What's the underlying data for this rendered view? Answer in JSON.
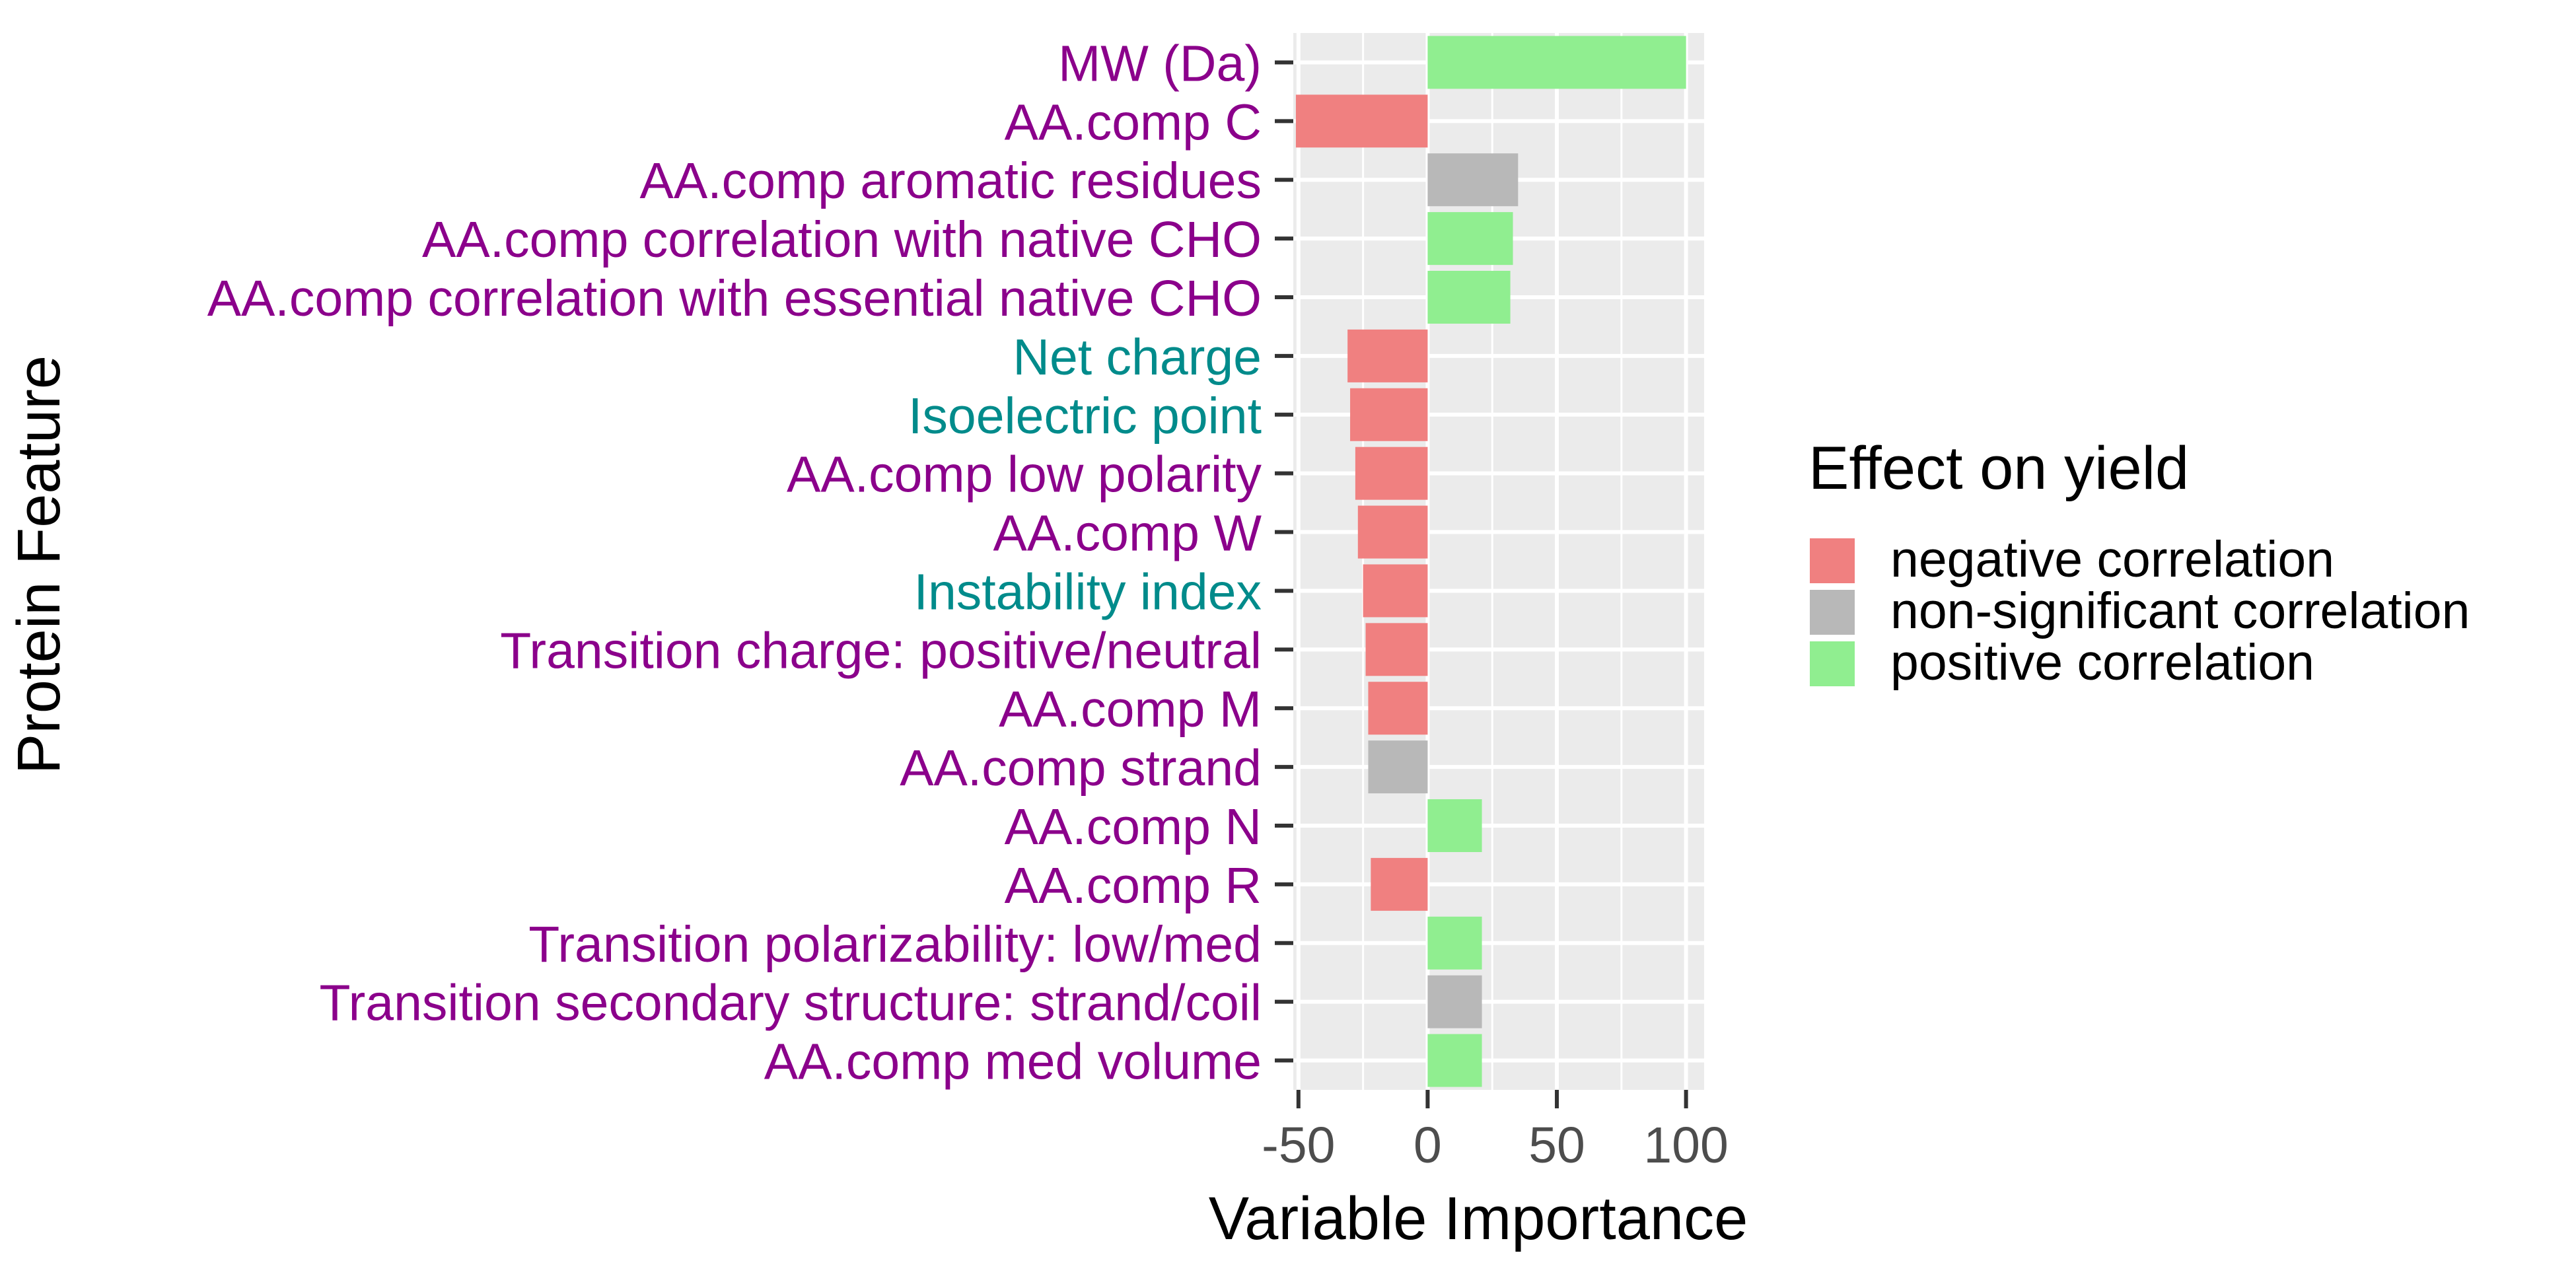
{
  "chart_data": {
    "type": "bar",
    "orientation": "horizontal",
    "xlabel": "Variable Importance",
    "ylabel": "Protein Feature",
    "xlim": [
      -52,
      107
    ],
    "xticks": [
      -50,
      0,
      50,
      100
    ],
    "xtick_labels": [
      "-50",
      "0",
      "50",
      "100"
    ],
    "grid": true,
    "legend": {
      "title": "Effect on yield",
      "placement": "right",
      "entries": [
        {
          "label": "negative correlation",
          "color": "#F08080"
        },
        {
          "label": "non-significant correlation",
          "color": "#B8B8B8"
        },
        {
          "label": "positive correlation",
          "color": "#90EE90"
        }
      ]
    },
    "label_colors": {
      "purple": "#8B008B",
      "teal": "#008B8B"
    },
    "bars": [
      {
        "feature": "MW (Da)",
        "value": 100,
        "effect": "positive correlation",
        "label_color": "purple"
      },
      {
        "feature": "AA.comp C",
        "value": -51,
        "effect": "negative correlation",
        "label_color": "purple"
      },
      {
        "feature": "AA.comp aromatic residues",
        "value": 35,
        "effect": "non-significant correlation",
        "label_color": "purple"
      },
      {
        "feature": "AA.comp correlation with native CHO",
        "value": 33,
        "effect": "positive correlation",
        "label_color": "purple"
      },
      {
        "feature": "AA.comp correlation with essential native CHO",
        "value": 32,
        "effect": "positive correlation",
        "label_color": "purple"
      },
      {
        "feature": "Net charge",
        "value": -31,
        "effect": "negative correlation",
        "label_color": "teal"
      },
      {
        "feature": "Isoelectric point",
        "value": -30,
        "effect": "negative correlation",
        "label_color": "teal"
      },
      {
        "feature": "AA.comp low polarity",
        "value": -28,
        "effect": "negative correlation",
        "label_color": "purple"
      },
      {
        "feature": "AA.comp W",
        "value": -27,
        "effect": "negative correlation",
        "label_color": "purple"
      },
      {
        "feature": "Instability index",
        "value": -25,
        "effect": "negative correlation",
        "label_color": "teal"
      },
      {
        "feature": "Transition charge: positive/neutral",
        "value": -24,
        "effect": "negative correlation",
        "label_color": "purple"
      },
      {
        "feature": "AA.comp M",
        "value": -23,
        "effect": "negative correlation",
        "label_color": "purple"
      },
      {
        "feature": "AA.comp strand",
        "value": -23,
        "effect": "non-significant correlation",
        "label_color": "purple"
      },
      {
        "feature": "AA.comp N",
        "value": 21,
        "effect": "positive correlation",
        "label_color": "purple"
      },
      {
        "feature": "AA.comp R",
        "value": -22,
        "effect": "negative correlation",
        "label_color": "purple"
      },
      {
        "feature": "Transition polarizability: low/med",
        "value": 21,
        "effect": "positive correlation",
        "label_color": "purple"
      },
      {
        "feature": "Transition secondary structure: strand/coil",
        "value": 21,
        "effect": "non-significant correlation",
        "label_color": "purple"
      },
      {
        "feature": "AA.comp med volume",
        "value": 21,
        "effect": "positive correlation",
        "label_color": "purple"
      }
    ]
  }
}
